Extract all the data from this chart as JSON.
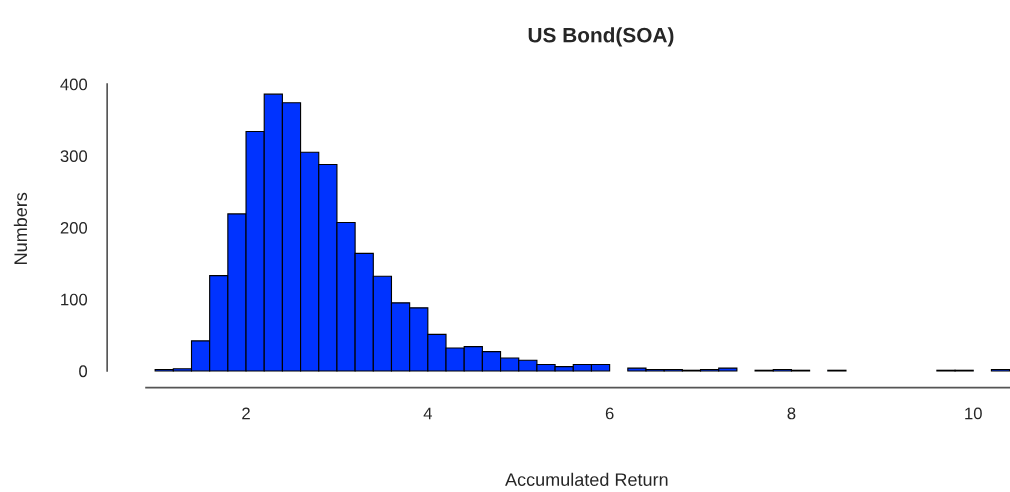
{
  "chart_data": {
    "type": "histogram",
    "title": "US Bond(SOA)",
    "xlabel": "Accumulated Return",
    "ylabel": "Numbers",
    "bins": [
      1.0,
      1.2,
      1.4,
      1.6,
      1.8,
      2.0,
      2.2,
      2.4,
      2.6,
      2.8,
      3.0,
      3.2,
      3.4,
      3.6,
      3.8,
      4.0,
      4.2,
      4.4,
      4.6,
      4.8,
      5.0,
      5.2,
      5.4,
      5.6,
      5.8,
      6.0,
      6.2,
      6.4,
      6.6,
      6.8,
      7.0,
      7.2,
      7.4,
      7.6,
      7.8,
      8.0,
      8.2,
      8.4,
      8.6,
      8.8,
      9.0,
      9.2,
      9.4,
      9.6,
      9.8,
      10.0,
      10.2,
      10.4
    ],
    "values": [
      2,
      3,
      42,
      133,
      219,
      334,
      386,
      374,
      305,
      288,
      207,
      164,
      132,
      95,
      88,
      51,
      32,
      34,
      27,
      18,
      15,
      9,
      6,
      9,
      9,
      0,
      4,
      2,
      2,
      1,
      2,
      4,
      0,
      1,
      2,
      1,
      0,
      1,
      0,
      0,
      0,
      0,
      0,
      1,
      1,
      0,
      2
    ],
    "color": "#0033ff",
    "xlim": [
      0.9,
      10.4
    ],
    "ylim": [
      0,
      400
    ],
    "xticks": [
      2,
      4,
      6,
      8,
      10
    ],
    "yticks": [
      0,
      100,
      200,
      300,
      400
    ],
    "grid": false,
    "legend": false
  }
}
